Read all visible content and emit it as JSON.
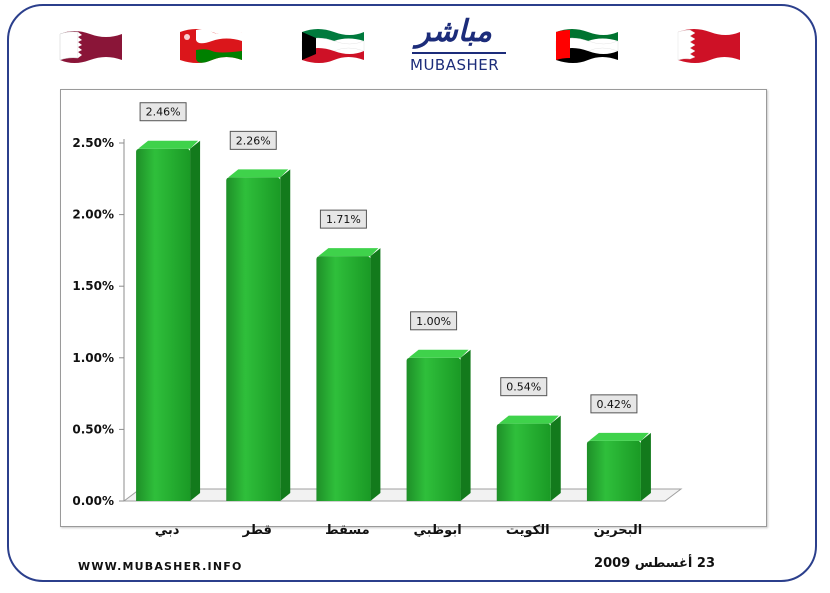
{
  "footer": {
    "website": "WWW.MUBASHER.INFO",
    "date": "23 أغسطس 2009"
  },
  "logo": {
    "arabic": "مباشر",
    "latin": "MUBASHER"
  },
  "flags": [
    {
      "name": "qatar-flag-icon",
      "colors": [
        "#ffffff",
        "#8a1538"
      ]
    },
    {
      "name": "oman-flag-icon",
      "colors": [
        "#db161b",
        "#ffffff",
        "#008000"
      ]
    },
    {
      "name": "kuwait-flag-icon",
      "colors": [
        "#007a3d",
        "#ffffff",
        "#ce1126",
        "#000000"
      ]
    },
    {
      "name": "uae-flag-icon",
      "colors": [
        "#00732f",
        "#ffffff",
        "#000000",
        "#ff0000"
      ]
    },
    {
      "name": "bahrain-flag-icon",
      "colors": [
        "#ffffff",
        "#ce1126"
      ]
    }
  ],
  "chart_data": {
    "type": "bar",
    "categories": [
      "دبي",
      "قطر",
      "مسقط",
      "ابوظبي",
      "الكويت",
      "البحرين"
    ],
    "values": [
      2.46,
      2.26,
      1.71,
      1.0,
      0.54,
      0.42
    ],
    "data_labels": [
      "2.46%",
      "2.26%",
      "1.71%",
      "1.00%",
      "0.54%",
      "0.42%"
    ],
    "y_ticks": [
      "0.00%",
      "0.50%",
      "1.00%",
      "1.50%",
      "2.00%",
      "2.50%"
    ],
    "ylim": [
      0,
      2.5
    ],
    "grid": false,
    "legend": "none",
    "bar_color": "#1fa12b"
  }
}
